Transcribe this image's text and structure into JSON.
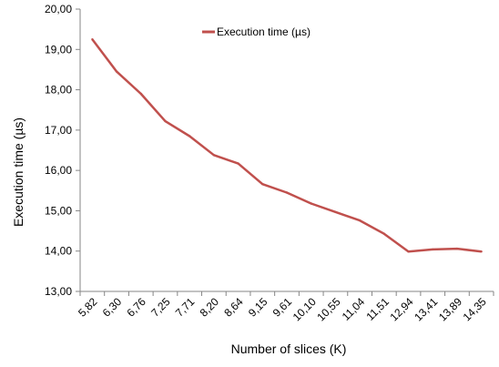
{
  "chart_data": {
    "type": "line",
    "xlabel": "Number of slices (K)",
    "ylabel": "Execution time (µs)",
    "ylim": [
      13,
      20
    ],
    "y_ticks": [
      "13,00",
      "14,00",
      "15,00",
      "16,00",
      "17,00",
      "18,00",
      "19,00",
      "20,00"
    ],
    "grid": false,
    "legend_position": "top",
    "categories": [
      "5,82",
      "6,30",
      "6,76",
      "7,25",
      "7,71",
      "8,20",
      "8,64",
      "9,15",
      "9,61",
      "10,10",
      "10,55",
      "11,04",
      "11,51",
      "12,94",
      "13,41",
      "13,89",
      "14,35"
    ],
    "series": [
      {
        "name": "Execution time (µs)",
        "color": "#c0504d",
        "values": [
          19.25,
          18.45,
          17.9,
          17.22,
          16.85,
          16.38,
          16.17,
          15.66,
          15.45,
          15.18,
          14.97,
          14.76,
          14.43,
          13.99,
          14.04,
          14.06,
          13.99
        ]
      }
    ]
  }
}
